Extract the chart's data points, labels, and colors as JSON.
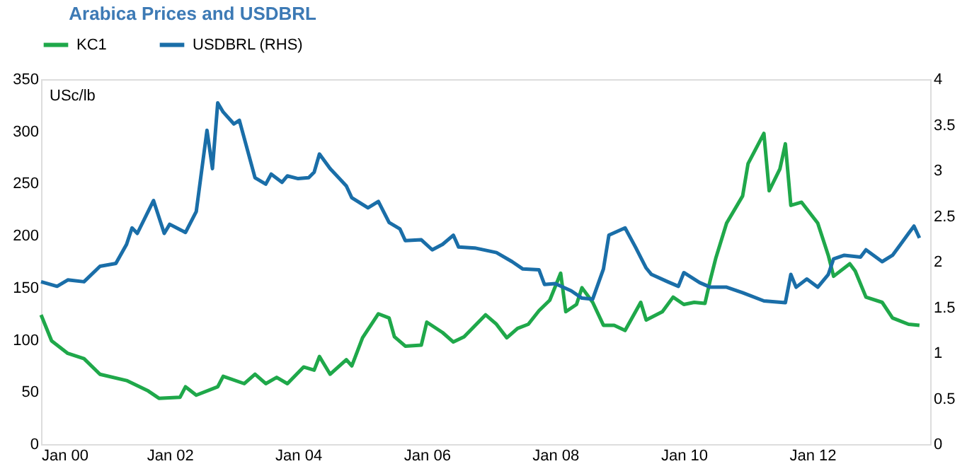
{
  "chart_data": {
    "type": "line",
    "title": "Arabica Prices and USDBRL",
    "ylabel": "USc/lb",
    "xlim": [
      "2000-01",
      "2013-11"
    ],
    "xticks": [
      {
        "value": "2000-01",
        "label": "Jan 00"
      },
      {
        "value": "2002-01",
        "label": "Jan 02"
      },
      {
        "value": "2004-01",
        "label": "Jan 04"
      },
      {
        "value": "2006-01",
        "label": "Jan 06"
      },
      {
        "value": "2008-01",
        "label": "Jan 08"
      },
      {
        "value": "2010-01",
        "label": "Jan 10"
      },
      {
        "value": "2012-01",
        "label": "Jan 12"
      }
    ],
    "ylim": [
      0,
      350
    ],
    "yticks": [
      0,
      50,
      100,
      150,
      200,
      250,
      300,
      350
    ],
    "y2lim": [
      0,
      4
    ],
    "y2ticks": [
      0,
      0.5,
      1,
      1.5,
      2,
      2.5,
      3,
      3.5,
      4
    ],
    "grid": false,
    "legend": "top",
    "marker": "none",
    "line_style": "solid",
    "series": [
      {
        "name": "KC1",
        "color": "#1fa84a",
        "x": [
          "2000-01",
          "2000-03",
          "2000-06",
          "2000-09",
          "2000-12",
          "2001-05",
          "2001-09",
          "2001-11",
          "2002-03",
          "2002-04",
          "2002-06",
          "2002-10",
          "2002-11",
          "2003-03",
          "2003-05",
          "2003-07",
          "2003-09",
          "2003-11",
          "2004-02",
          "2004-04",
          "2004-05",
          "2004-07",
          "2004-10",
          "2004-11",
          "2005-01",
          "2005-04",
          "2005-06",
          "2005-07",
          "2005-09",
          "2005-12",
          "2006-01",
          "2006-04",
          "2006-06",
          "2006-08",
          "2006-12",
          "2007-02",
          "2007-04",
          "2007-06",
          "2007-08",
          "2007-10",
          "2007-12",
          "2008-02",
          "2008-03",
          "2008-05",
          "2008-06",
          "2008-08",
          "2008-10",
          "2008-12",
          "2009-02",
          "2009-05",
          "2009-06",
          "2009-09",
          "2009-11",
          "2010-01",
          "2010-03",
          "2010-05",
          "2010-06",
          "2010-07",
          "2010-09",
          "2010-12",
          "2011-01",
          "2011-04",
          "2011-05",
          "2011-07",
          "2011-08",
          "2011-09",
          "2011-11",
          "2012-02",
          "2012-04",
          "2012-05",
          "2012-08",
          "2012-09",
          "2012-11",
          "2013-02",
          "2013-04",
          "2013-07",
          "2013-09"
        ],
        "values": [
          124,
          99,
          87,
          82,
          67,
          61,
          51,
          44,
          45,
          55,
          47,
          55,
          65,
          58,
          67,
          58,
          64,
          58,
          74,
          71,
          84,
          67,
          81,
          75,
          102,
          125,
          121,
          103,
          94,
          95,
          117,
          107,
          98,
          103,
          124,
          115,
          102,
          111,
          115,
          128,
          138,
          164,
          127,
          134,
          150,
          136,
          114,
          114,
          109,
          136,
          119,
          127,
          141,
          134,
          136,
          135,
          158,
          178,
          212,
          238,
          269,
          298,
          243,
          264,
          288,
          229,
          232,
          212,
          181,
          161,
          173,
          166,
          141,
          136,
          121,
          115,
          114
        ]
      },
      {
        "name": "USDBRL (RHS)",
        "color": "#1a6ea8",
        "axis": "y2",
        "x": [
          "2000-01",
          "2000-04",
          "2000-06",
          "2000-09",
          "2000-12",
          "2001-03",
          "2001-05",
          "2001-06",
          "2001-07",
          "2001-10",
          "2001-12",
          "2002-01",
          "2002-04",
          "2002-06",
          "2002-08",
          "2002-09",
          "2002-10",
          "2002-11",
          "2003-01",
          "2003-02",
          "2003-05",
          "2003-07",
          "2003-08",
          "2003-10",
          "2003-11",
          "2004-01",
          "2004-03",
          "2004-04",
          "2004-05",
          "2004-07",
          "2004-10",
          "2004-11",
          "2005-02",
          "2005-04",
          "2005-06",
          "2005-08",
          "2005-09",
          "2005-12",
          "2006-02",
          "2006-04",
          "2006-06",
          "2006-07",
          "2006-10",
          "2007-02",
          "2007-05",
          "2007-07",
          "2007-10",
          "2007-11",
          "2008-01",
          "2008-04",
          "2008-06",
          "2008-08",
          "2008-10",
          "2008-11",
          "2009-02",
          "2009-04",
          "2009-06",
          "2009-07",
          "2009-10",
          "2009-12",
          "2010-01",
          "2010-04",
          "2010-06",
          "2010-09",
          "2010-12",
          "2011-04",
          "2011-08",
          "2011-09",
          "2011-10",
          "2011-12",
          "2012-02",
          "2012-04",
          "2012-05",
          "2012-07",
          "2012-10",
          "2012-11",
          "2013-02",
          "2013-04",
          "2013-07",
          "2013-08",
          "2013-09"
        ],
        "values": [
          1.78,
          1.73,
          1.8,
          1.78,
          1.95,
          1.98,
          2.19,
          2.37,
          2.31,
          2.67,
          2.31,
          2.41,
          2.32,
          2.55,
          3.44,
          3.02,
          3.74,
          3.64,
          3.51,
          3.55,
          2.92,
          2.85,
          2.96,
          2.87,
          2.94,
          2.91,
          2.92,
          2.98,
          3.18,
          3.02,
          2.83,
          2.7,
          2.59,
          2.66,
          2.43,
          2.36,
          2.23,
          2.24,
          2.13,
          2.19,
          2.29,
          2.16,
          2.15,
          2.1,
          2.0,
          1.92,
          1.91,
          1.75,
          1.76,
          1.68,
          1.6,
          1.59,
          1.92,
          2.29,
          2.37,
          2.16,
          1.93,
          1.86,
          1.78,
          1.73,
          1.88,
          1.77,
          1.72,
          1.72,
          1.66,
          1.57,
          1.55,
          1.86,
          1.72,
          1.81,
          1.72,
          1.86,
          2.03,
          2.07,
          2.05,
          2.13,
          2.0,
          2.07,
          2.31,
          2.39,
          2.26
        ]
      }
    ]
  }
}
